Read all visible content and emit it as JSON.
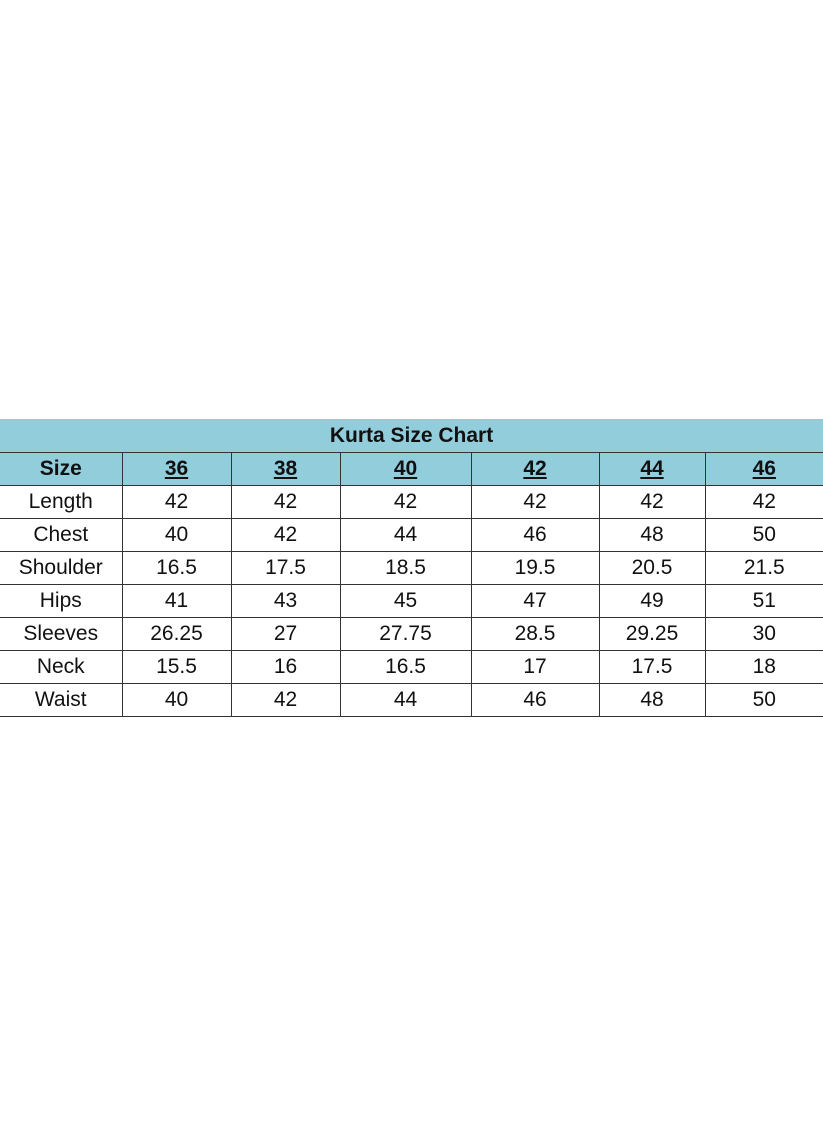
{
  "title": "Kurta Size Chart",
  "header": [
    "Size",
    "36",
    "38",
    "40",
    "42",
    "44",
    "46"
  ],
  "rows": [
    [
      "Length",
      "42",
      "42",
      "42",
      "42",
      "42",
      "42"
    ],
    [
      "Chest",
      "40",
      "42",
      "44",
      "46",
      "48",
      "50"
    ],
    [
      "Shoulder",
      "16.5",
      "17.5",
      "18.5",
      "19.5",
      "20.5",
      "21.5"
    ],
    [
      "Hips",
      "41",
      "43",
      "45",
      "47",
      "49",
      "51"
    ],
    [
      "Sleeves",
      "26.25",
      "27",
      "27.75",
      "28.5",
      "29.25",
      "30"
    ],
    [
      "Neck",
      "15.5",
      "16",
      "16.5",
      "17",
      "17.5",
      "18"
    ],
    [
      "Waist",
      "40",
      "42",
      "44",
      "46",
      "48",
      "50"
    ]
  ],
  "colors": {
    "header_bg": "#92cddc"
  }
}
